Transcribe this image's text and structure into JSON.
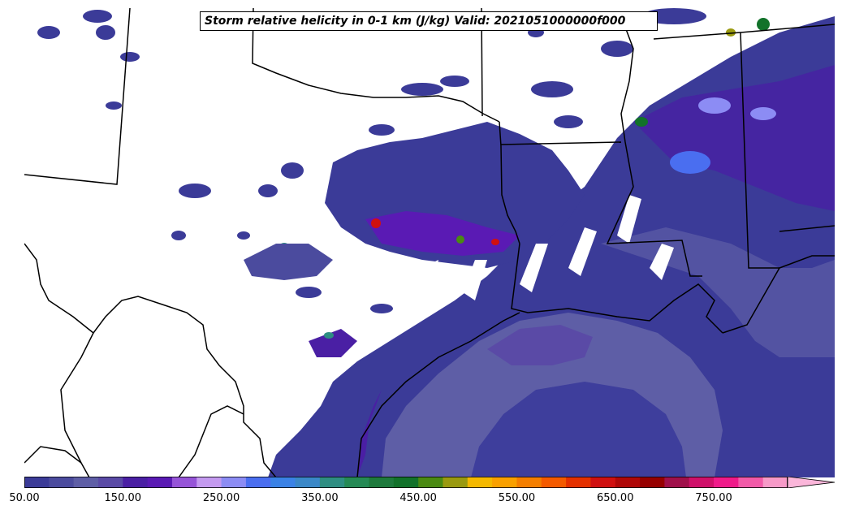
{
  "title": "Storm relative helicity in 0-1 km (J/kg) Valid: 2021051000000f000",
  "colorbar": {
    "ticks": [
      "50.00",
      "150.00",
      "250.00",
      "350.00",
      "450.00",
      "550.00",
      "650.00",
      "750.00"
    ],
    "extend": "max",
    "colors": [
      "#3b3b98",
      "#4b4b9e",
      "#5e5ea6",
      "#5a4aa6",
      "#4a1fa4",
      "#5a1ab4",
      "#9654d8",
      "#c49af0",
      "#8c8cf4",
      "#4a6ef0",
      "#3a82e6",
      "#3a88c8",
      "#2e8e82",
      "#258a55",
      "#1e7a3c",
      "#12722a",
      "#4a8a12",
      "#9a9a10",
      "#f4b800",
      "#f9a000",
      "#f47e00",
      "#f45a00",
      "#e43000",
      "#d01010",
      "#b00808",
      "#960000",
      "#a0104a",
      "#d0106a",
      "#f01a8a",
      "#f25aa8",
      "#f79ac8",
      "#fbb6da"
    ]
  }
}
